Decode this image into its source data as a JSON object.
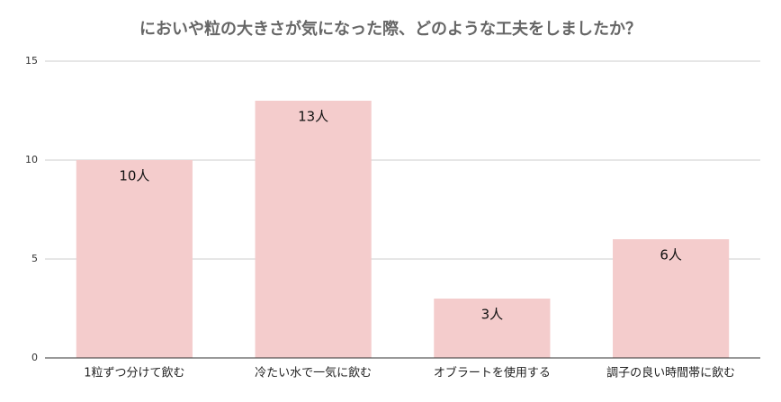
{
  "chart_data": {
    "type": "bar",
    "title": "においや粒の大きさが気になった際、どのような工夫をしましたか？",
    "categories": [
      "1粒ずつ分けて飲む",
      "冷たい水で一気に飲む",
      "オブラートを使用する",
      "調子の良い時間帯に飲む"
    ],
    "values": [
      10,
      13,
      3,
      6
    ],
    "value_labels": [
      "10人",
      "13人",
      "3人",
      "6人"
    ],
    "color": "#f4cccc",
    "ylim": [
      0,
      15
    ],
    "yticks": [
      0,
      5,
      10,
      15
    ],
    "grid": true
  }
}
